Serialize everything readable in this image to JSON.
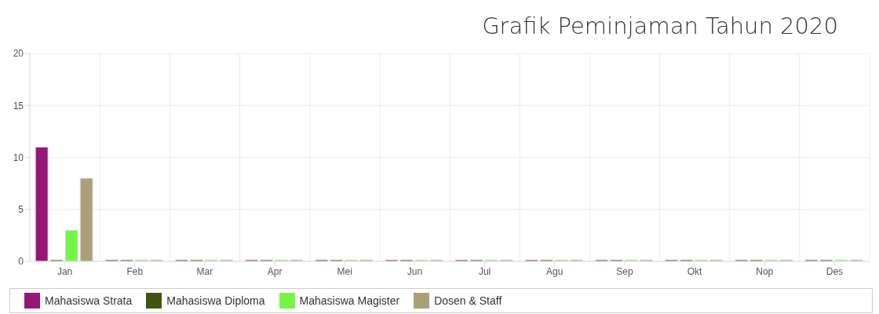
{
  "chart_data": {
    "type": "bar",
    "title": "Grafik Peminjaman Tahun 2020",
    "categories": [
      "Jan",
      "Feb",
      "Mar",
      "Apr",
      "Mei",
      "Jun",
      "Jul",
      "Agu",
      "Sep",
      "Okt",
      "Nop",
      "Des"
    ],
    "series": [
      {
        "name": "Mahasiswa Strata",
        "color": "#951673",
        "values": [
          11,
          0,
          0,
          0,
          0,
          0,
          0,
          0,
          0,
          0,
          0,
          0
        ]
      },
      {
        "name": "Mahasiswa Diploma",
        "color": "#41550f",
        "values": [
          0,
          0,
          0,
          0,
          0,
          0,
          0,
          0,
          0,
          0,
          0,
          0
        ]
      },
      {
        "name": "Mahasiswa Magister",
        "color": "#72f547",
        "values": [
          3,
          0,
          0,
          0,
          0,
          0,
          0,
          0,
          0,
          0,
          0,
          0
        ]
      },
      {
        "name": "Dosen & Staff",
        "color": "#aa9f78",
        "values": [
          8,
          0,
          0,
          0,
          0,
          0,
          0,
          0,
          0,
          0,
          0,
          0
        ]
      }
    ],
    "ylim": [
      0,
      20
    ],
    "yticks": [
      0,
      5,
      10,
      15,
      20
    ],
    "grid": true,
    "legend": "bottom"
  }
}
